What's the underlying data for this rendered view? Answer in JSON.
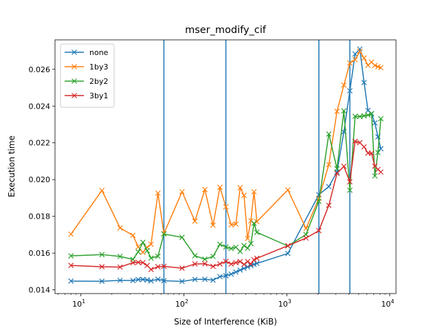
{
  "chart_data": {
    "type": "line",
    "title": "mser_modify_cif",
    "xlabel": "Size of Interference (KiB)",
    "ylabel": "Execution time",
    "xscale": "log",
    "xlim": [
      5.6,
      11500
    ],
    "ylim": [
      0.0138,
      0.0276
    ],
    "x_ticks": [
      {
        "value": 10,
        "base": "10",
        "exp": "1"
      },
      {
        "value": 100,
        "base": "10",
        "exp": "2"
      },
      {
        "value": 1000,
        "base": "10",
        "exp": "3"
      },
      {
        "value": 10000,
        "base": "10",
        "exp": "4"
      }
    ],
    "y_ticks": [
      {
        "value": 0.014,
        "label": "0.014"
      },
      {
        "value": 0.016,
        "label": "0.016"
      },
      {
        "value": 0.018,
        "label": "0.018"
      },
      {
        "value": 0.02,
        "label": "0.020"
      },
      {
        "value": 0.022,
        "label": "0.022"
      },
      {
        "value": 0.024,
        "label": "0.024"
      },
      {
        "value": 0.026,
        "label": "0.026"
      }
    ],
    "vlines": [
      64,
      256,
      2048,
      4096
    ],
    "vline_color": "#1f77b4",
    "legend_position": "upper left",
    "marker": "x",
    "series": [
      {
        "name": "none",
        "color": "#1f77b4",
        "x": [
          8,
          16,
          24,
          32,
          36,
          40,
          44,
          48,
          56,
          64,
          96,
          128,
          160,
          192,
          224,
          256,
          288,
          320,
          352,
          384,
          416,
          448,
          480,
          512,
          1024,
          2048,
          2560,
          3072,
          3584,
          4096,
          4608,
          5120,
          5632,
          6144,
          6656,
          7168,
          7680,
          8192
        ],
        "y": [
          0.01448,
          0.01447,
          0.01452,
          0.01451,
          0.01456,
          0.01457,
          0.01454,
          0.01449,
          0.01458,
          0.0145,
          0.01446,
          0.01457,
          0.01458,
          0.01453,
          0.01472,
          0.01477,
          0.01486,
          0.01497,
          0.01508,
          0.01517,
          0.01525,
          0.01532,
          0.01539,
          0.01544,
          0.01598,
          0.01918,
          0.01962,
          0.02041,
          0.0226,
          0.02483,
          0.02683,
          0.0271,
          0.02528,
          0.02376,
          0.02359,
          0.02308,
          0.02233,
          0.02168
        ]
      },
      {
        "name": "1by3",
        "color": "#ff7f0e",
        "x": [
          8,
          16,
          24,
          32,
          36,
          40,
          44,
          48,
          56,
          64,
          96,
          128,
          160,
          192,
          224,
          256,
          288,
          320,
          352,
          384,
          416,
          448,
          480,
          512,
          1024,
          1536,
          2048,
          2560,
          3072,
          3584,
          4096,
          4608,
          5120,
          5632,
          6144,
          6656,
          7168,
          7680,
          8192
        ],
        "y": [
          0.01703,
          0.01941,
          0.01737,
          0.01697,
          0.01634,
          0.01604,
          0.01632,
          0.01648,
          0.01926,
          0.01706,
          0.01934,
          0.01774,
          0.01946,
          0.01752,
          0.01958,
          0.01852,
          0.01754,
          0.01758,
          0.01956,
          0.01914,
          0.0168,
          0.01776,
          0.01934,
          0.01771,
          0.01944,
          0.01734,
          0.01898,
          0.02082,
          0.02371,
          0.02514,
          0.02634,
          0.02652,
          0.02698,
          0.02661,
          0.02622,
          0.02639,
          0.02621,
          0.02614,
          0.02609
        ]
      },
      {
        "name": "2by2",
        "color": "#2ca02c",
        "x": [
          8,
          16,
          24,
          32,
          36,
          40,
          44,
          48,
          56,
          64,
          96,
          128,
          160,
          192,
          224,
          256,
          288,
          320,
          352,
          384,
          416,
          448,
          480,
          512,
          1024,
          1536,
          2048,
          2560,
          3072,
          3584,
          4096,
          4608,
          5120,
          5632,
          6144,
          6656,
          7168,
          7680,
          8192
        ],
        "y": [
          0.01585,
          0.01592,
          0.01582,
          0.01566,
          0.01607,
          0.01659,
          0.01613,
          0.01573,
          0.01583,
          0.01704,
          0.01686,
          0.01586,
          0.01567,
          0.01582,
          0.01648,
          0.01633,
          0.01625,
          0.01632,
          0.01609,
          0.01641,
          0.01627,
          0.01652,
          0.01762,
          0.01713,
          0.01639,
          0.01701,
          0.01882,
          0.02248,
          0.02059,
          0.02374,
          0.01942,
          0.02344,
          0.02343,
          0.02347,
          0.02351,
          0.02358,
          0.0202,
          0.02147,
          0.02331
        ]
      },
      {
        "name": "3by1",
        "color": "#d62728",
        "x": [
          8,
          16,
          24,
          32,
          36,
          40,
          44,
          48,
          56,
          64,
          96,
          128,
          160,
          192,
          224,
          256,
          288,
          320,
          352,
          384,
          416,
          448,
          480,
          512,
          1024,
          1536,
          2048,
          2560,
          3072,
          3584,
          4096,
          4608,
          5120,
          5632,
          6144,
          6656,
          7168,
          7680,
          8192
        ],
        "y": [
          0.01533,
          0.01526,
          0.01524,
          0.01548,
          0.0155,
          0.01548,
          0.01533,
          0.01511,
          0.01526,
          0.01528,
          0.01518,
          0.01541,
          0.01542,
          0.01528,
          0.01541,
          0.01555,
          0.01541,
          0.01548,
          0.01554,
          0.01539,
          0.01554,
          0.01541,
          0.01564,
          0.01572,
          0.0164,
          0.01682,
          0.01722,
          0.0186,
          0.02034,
          0.02072,
          0.01988,
          0.02208,
          0.02201,
          0.02178,
          0.02144,
          0.02143,
          0.02073,
          0.02055,
          0.02041
        ]
      }
    ]
  }
}
